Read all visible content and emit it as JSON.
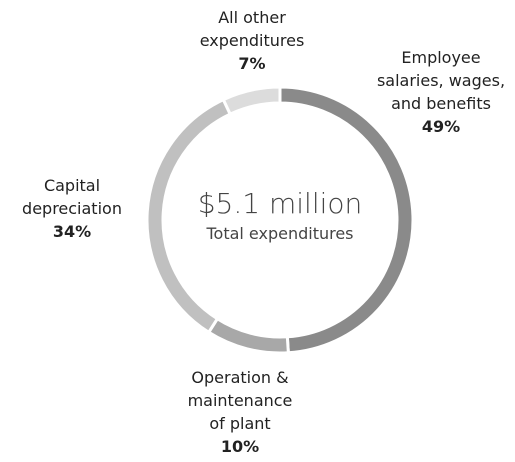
{
  "chart_data": {
    "type": "donut",
    "annotations": [
      "$5.1 million",
      "Total expenditures"
    ],
    "categories": [
      "Employee salaries, wages, and benefits",
      "Operation & maintenance of plant",
      "Capital depreciation",
      "All other expenditures"
    ],
    "values": [
      49,
      10,
      34,
      7
    ],
    "value_labels": [
      "49%",
      "10%",
      "34%",
      "7%"
    ],
    "colors": [
      "#8a8a8a",
      "#a8a8a8",
      "#c0c0c0",
      "#dcdcdc"
    ]
  }
}
